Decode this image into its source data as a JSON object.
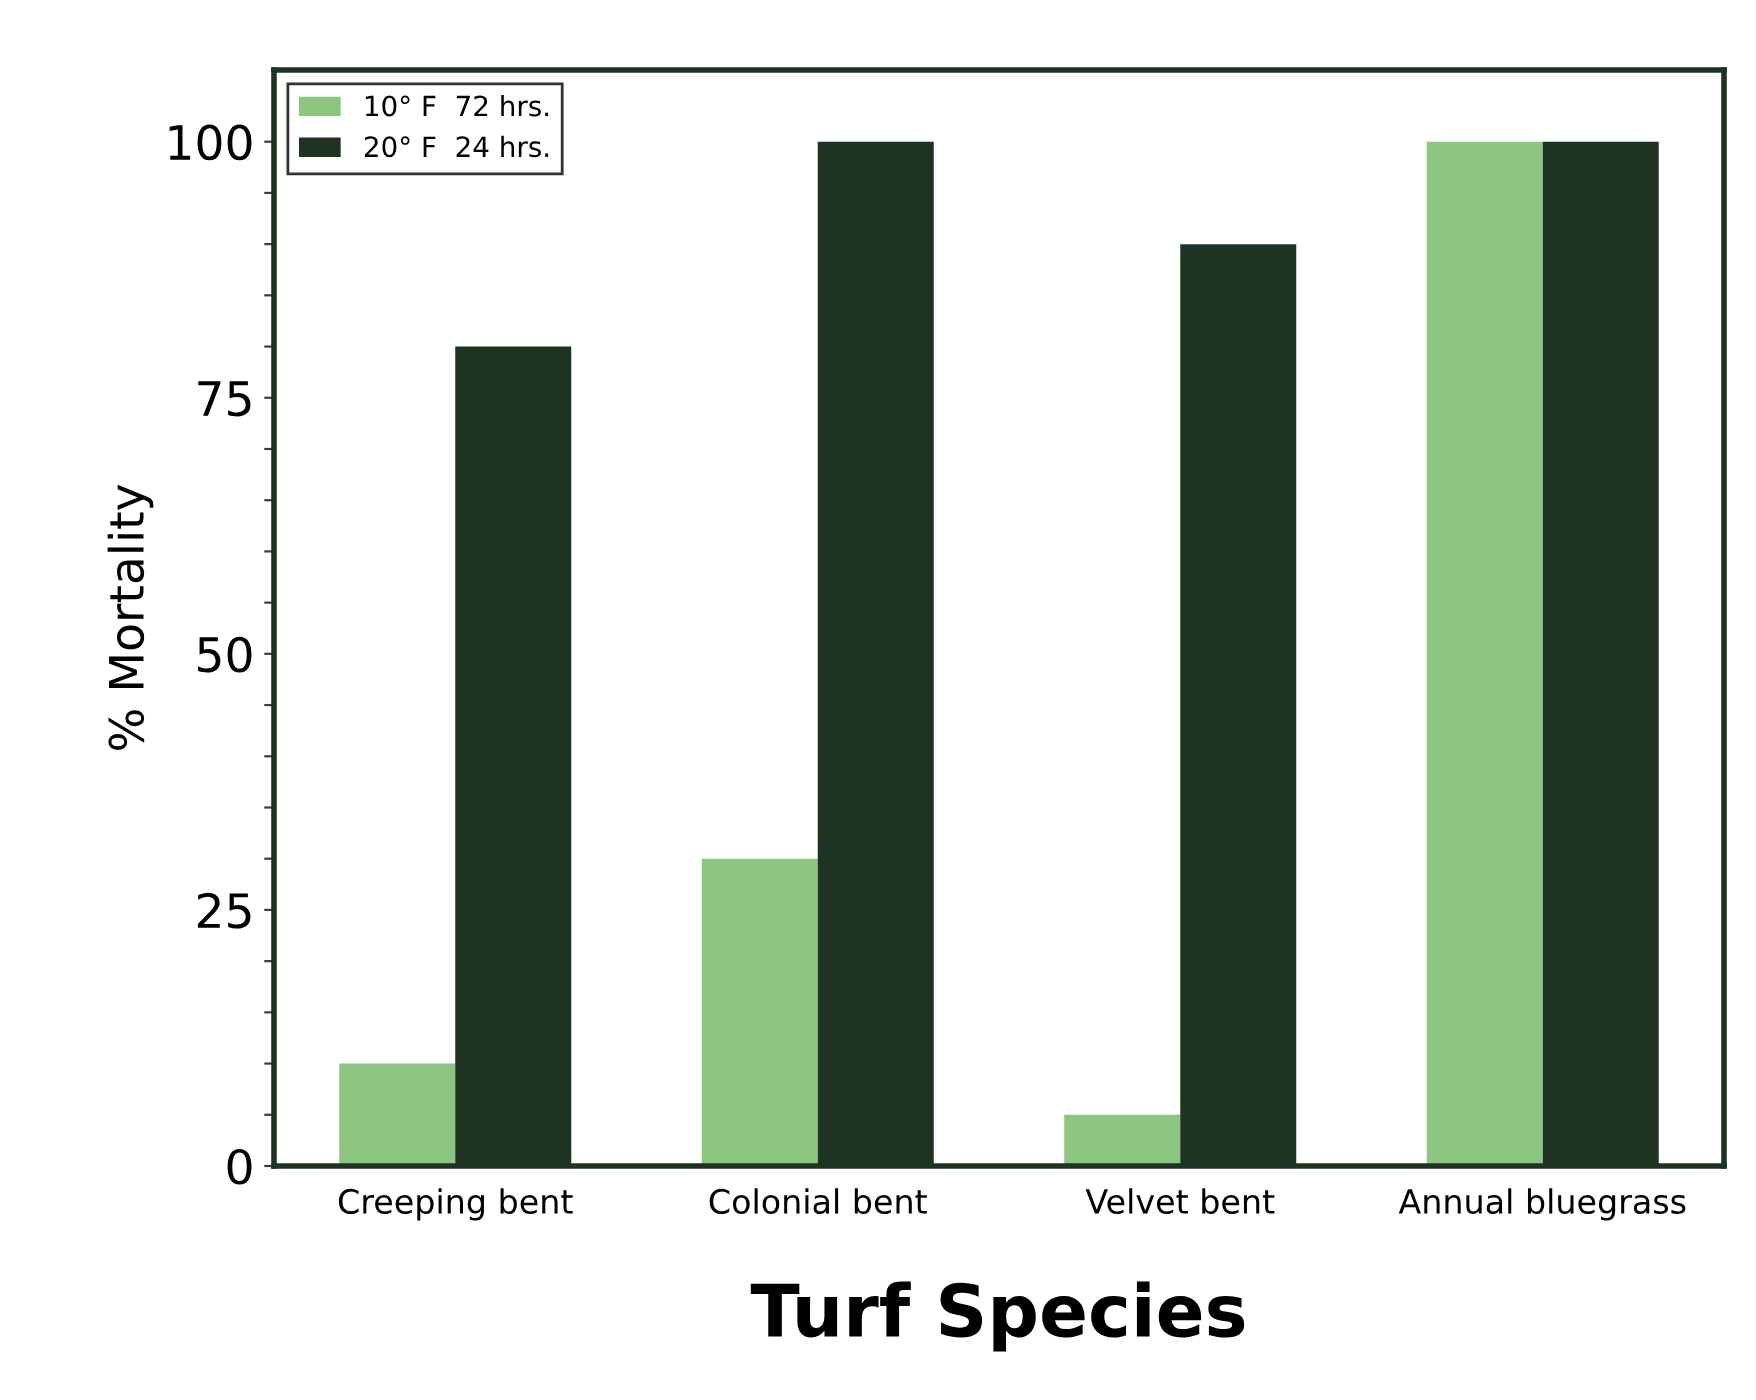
{
  "chart_data": {
    "type": "bar",
    "xlabel": "Turf Species",
    "ylabel": "% Mortality",
    "categories": [
      "Creeping bent",
      "Colonial bent",
      "Velvet bent",
      "Annual bluegrass"
    ],
    "series": [
      {
        "name": "10° F  72 hrs.",
        "color": "#8cc57f",
        "values": [
          10,
          30,
          5,
          100
        ]
      },
      {
        "name": "20° F  24 hrs.",
        "color": "#1f3322",
        "values": [
          80,
          100,
          90,
          100
        ]
      }
    ],
    "ylim": [
      0,
      107
    ],
    "yticks": [
      0,
      {
        "value": 5,
        "label": null
      },
      {
        "value": 10,
        "label": null
      },
      {
        "value": 15,
        "label": null
      },
      {
        "value": 20,
        "label": null
      },
      25,
      {
        "value": 30,
        "label": null
      },
      {
        "value": 35,
        "label": null
      },
      {
        "value": 40,
        "label": null
      },
      {
        "value": 45,
        "label": null
      },
      50,
      {
        "value": 55,
        "label": null
      },
      {
        "value": 60,
        "label": null
      },
      {
        "value": 65,
        "label": null
      },
      {
        "value": 70,
        "label": null
      },
      75,
      {
        "value": 80,
        "label": null
      },
      {
        "value": 85,
        "label": null
      },
      {
        "value": 90,
        "label": null
      },
      {
        "value": 95,
        "label": null
      },
      100
    ],
    "grid": false,
    "legend": "top left"
  }
}
